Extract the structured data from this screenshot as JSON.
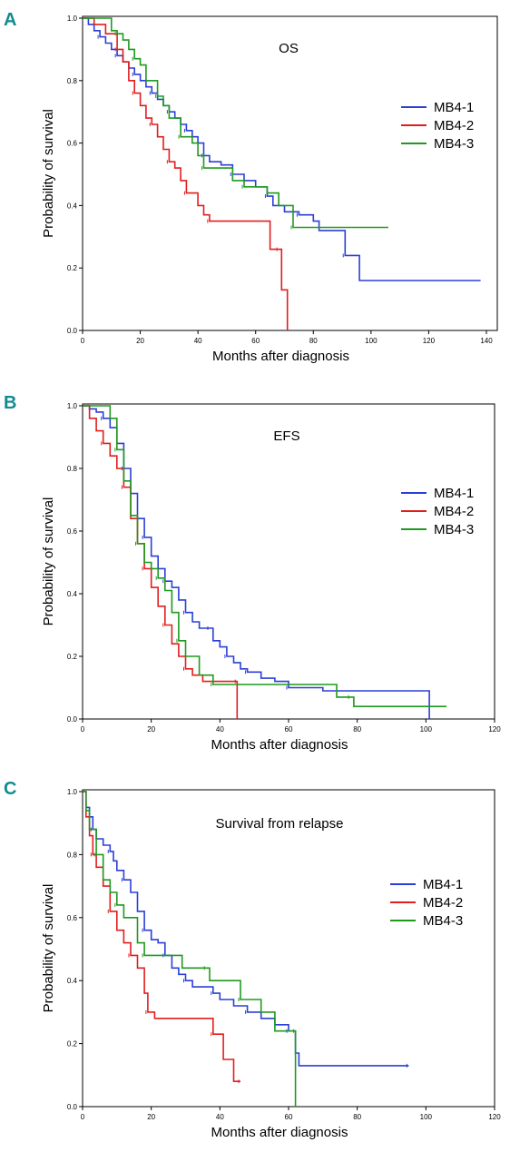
{
  "colors": {
    "series1": "#2b3fd6",
    "series2": "#e01e1e",
    "series3": "#1f9a1f",
    "axis": "#000000",
    "text": "#000000",
    "letter": "#138a8f"
  },
  "chart_data": [
    {
      "panel": "A",
      "type": "line",
      "subtype": "kaplan-meier step",
      "title": "OS",
      "xlabel": "Months after diagnosis",
      "ylabel": "Probability of survival",
      "xlim": [
        0,
        140
      ],
      "ylim": [
        0,
        1
      ],
      "xticks": [
        0,
        20,
        40,
        60,
        80,
        100,
        120,
        140
      ],
      "yticks": [
        "0.0",
        "0.2",
        "0.4",
        "0.6",
        "0.8",
        "1.0"
      ],
      "legend_position": "right",
      "series": [
        {
          "name": "MB4-1",
          "color": "series1",
          "points": [
            [
              0,
              1.0
            ],
            [
              2,
              0.98
            ],
            [
              4,
              0.96
            ],
            [
              6,
              0.94
            ],
            [
              8,
              0.92
            ],
            [
              10,
              0.9
            ],
            [
              12,
              0.88
            ],
            [
              14,
              0.86
            ],
            [
              16,
              0.84
            ],
            [
              18,
              0.82
            ],
            [
              20,
              0.8
            ],
            [
              22,
              0.78
            ],
            [
              24,
              0.76
            ],
            [
              26,
              0.74
            ],
            [
              28,
              0.72
            ],
            [
              30,
              0.7
            ],
            [
              32,
              0.68
            ],
            [
              34,
              0.66
            ],
            [
              36,
              0.64
            ],
            [
              38,
              0.62
            ],
            [
              40,
              0.6
            ],
            [
              42,
              0.56
            ],
            [
              44,
              0.54
            ],
            [
              48,
              0.53
            ],
            [
              52,
              0.5
            ],
            [
              56,
              0.48
            ],
            [
              60,
              0.46
            ],
            [
              64,
              0.43
            ],
            [
              66,
              0.4
            ],
            [
              70,
              0.38
            ],
            [
              75,
              0.37
            ],
            [
              80,
              0.35
            ],
            [
              82,
              0.32
            ],
            [
              91,
              0.24
            ],
            [
              96,
              0.16
            ],
            [
              138,
              0.16
            ]
          ]
        },
        {
          "name": "MB4-2",
          "color": "series2",
          "points": [
            [
              0,
              1.0
            ],
            [
              4,
              0.98
            ],
            [
              8,
              0.95
            ],
            [
              12,
              0.9
            ],
            [
              14,
              0.86
            ],
            [
              16,
              0.8
            ],
            [
              18,
              0.76
            ],
            [
              20,
              0.72
            ],
            [
              22,
              0.68
            ],
            [
              24,
              0.66
            ],
            [
              26,
              0.62
            ],
            [
              28,
              0.58
            ],
            [
              30,
              0.54
            ],
            [
              32,
              0.52
            ],
            [
              34,
              0.48
            ],
            [
              36,
              0.44
            ],
            [
              40,
              0.4
            ],
            [
              42,
              0.37
            ],
            [
              44,
              0.35
            ],
            [
              64,
              0.35
            ],
            [
              65,
              0.26
            ],
            [
              68,
              0.26
            ],
            [
              69,
              0.13
            ],
            [
              71,
              0.13
            ],
            [
              71,
              0.0
            ]
          ]
        },
        {
          "name": "MB4-3",
          "color": "series3",
          "points": [
            [
              0,
              1.0
            ],
            [
              8,
              1.0
            ],
            [
              10,
              0.96
            ],
            [
              12,
              0.95
            ],
            [
              14,
              0.93
            ],
            [
              16,
              0.9
            ],
            [
              18,
              0.87
            ],
            [
              20,
              0.85
            ],
            [
              22,
              0.8
            ],
            [
              26,
              0.75
            ],
            [
              28,
              0.72
            ],
            [
              30,
              0.68
            ],
            [
              34,
              0.62
            ],
            [
              38,
              0.6
            ],
            [
              40,
              0.56
            ],
            [
              42,
              0.52
            ],
            [
              50,
              0.52
            ],
            [
              52,
              0.48
            ],
            [
              56,
              0.46
            ],
            [
              64,
              0.44
            ],
            [
              68,
              0.4
            ],
            [
              73,
              0.33
            ],
            [
              106,
              0.33
            ]
          ]
        }
      ]
    },
    {
      "panel": "B",
      "type": "line",
      "subtype": "kaplan-meier step",
      "title": "EFS",
      "xlabel": "Months after diagnosis",
      "ylabel": "Probability of survival",
      "xlim": [
        0,
        120
      ],
      "ylim": [
        0,
        1
      ],
      "xticks": [
        0,
        20,
        40,
        60,
        80,
        100,
        120
      ],
      "yticks": [
        "0.0",
        "0.2",
        "0.4",
        "0.6",
        "0.8",
        "1.0"
      ],
      "legend_position": "right",
      "series": [
        {
          "name": "MB4-1",
          "color": "series1",
          "points": [
            [
              0,
              1.0
            ],
            [
              2,
              0.99
            ],
            [
              4,
              0.98
            ],
            [
              6,
              0.96
            ],
            [
              8,
              0.93
            ],
            [
              10,
              0.88
            ],
            [
              12,
              0.8
            ],
            [
              14,
              0.72
            ],
            [
              16,
              0.64
            ],
            [
              18,
              0.58
            ],
            [
              20,
              0.52
            ],
            [
              22,
              0.48
            ],
            [
              24,
              0.44
            ],
            [
              26,
              0.42
            ],
            [
              28,
              0.38
            ],
            [
              30,
              0.34
            ],
            [
              32,
              0.31
            ],
            [
              34,
              0.29
            ],
            [
              37,
              0.29
            ],
            [
              38,
              0.25
            ],
            [
              40,
              0.23
            ],
            [
              42,
              0.2
            ],
            [
              44,
              0.18
            ],
            [
              46,
              0.16
            ],
            [
              48,
              0.15
            ],
            [
              52,
              0.13
            ],
            [
              56,
              0.12
            ],
            [
              60,
              0.1
            ],
            [
              70,
              0.09
            ],
            [
              100,
              0.09
            ],
            [
              101,
              0.0
            ]
          ]
        },
        {
          "name": "MB4-2",
          "color": "series2",
          "points": [
            [
              0,
              1.0
            ],
            [
              2,
              0.96
            ],
            [
              4,
              0.92
            ],
            [
              6,
              0.88
            ],
            [
              8,
              0.84
            ],
            [
              10,
              0.8
            ],
            [
              12,
              0.74
            ],
            [
              14,
              0.64
            ],
            [
              16,
              0.56
            ],
            [
              18,
              0.48
            ],
            [
              20,
              0.42
            ],
            [
              22,
              0.36
            ],
            [
              24,
              0.3
            ],
            [
              26,
              0.24
            ],
            [
              28,
              0.2
            ],
            [
              30,
              0.16
            ],
            [
              32,
              0.14
            ],
            [
              35,
              0.12
            ],
            [
              45,
              0.12
            ],
            [
              45,
              0.0
            ]
          ]
        },
        {
          "name": "MB4-3",
          "color": "series3",
          "points": [
            [
              0,
              1.0
            ],
            [
              6,
              1.0
            ],
            [
              8,
              0.96
            ],
            [
              10,
              0.86
            ],
            [
              12,
              0.76
            ],
            [
              14,
              0.65
            ],
            [
              16,
              0.56
            ],
            [
              18,
              0.5
            ],
            [
              20,
              0.48
            ],
            [
              22,
              0.45
            ],
            [
              24,
              0.41
            ],
            [
              26,
              0.34
            ],
            [
              28,
              0.25
            ],
            [
              30,
              0.2
            ],
            [
              34,
              0.14
            ],
            [
              38,
              0.11
            ],
            [
              74,
              0.11
            ],
            [
              74,
              0.07
            ],
            [
              78,
              0.07
            ],
            [
              79,
              0.04
            ],
            [
              106,
              0.04
            ]
          ]
        }
      ]
    },
    {
      "panel": "C",
      "type": "line",
      "subtype": "kaplan-meier step",
      "title": "Survival from relapse",
      "xlabel": "Months after diagnosis",
      "ylabel": "Probability of survival",
      "xlim": [
        0,
        120
      ],
      "ylim": [
        0,
        1
      ],
      "xticks": [
        0,
        20,
        40,
        60,
        80,
        100,
        120
      ],
      "yticks": [
        "0.0",
        "0.2",
        "0.4",
        "0.6",
        "0.8",
        "1.0"
      ],
      "legend_position": "right",
      "series": [
        {
          "name": "MB4-1",
          "color": "series1",
          "points": [
            [
              0,
              1.0
            ],
            [
              1,
              0.95
            ],
            [
              2,
              0.92
            ],
            [
              3,
              0.88
            ],
            [
              4,
              0.85
            ],
            [
              6,
              0.83
            ],
            [
              8,
              0.81
            ],
            [
              9,
              0.78
            ],
            [
              10,
              0.75
            ],
            [
              12,
              0.72
            ],
            [
              14,
              0.68
            ],
            [
              16,
              0.62
            ],
            [
              18,
              0.56
            ],
            [
              20,
              0.53
            ],
            [
              22,
              0.52
            ],
            [
              24,
              0.48
            ],
            [
              26,
              0.44
            ],
            [
              28,
              0.42
            ],
            [
              30,
              0.4
            ],
            [
              32,
              0.38
            ],
            [
              36,
              0.38
            ],
            [
              38,
              0.36
            ],
            [
              40,
              0.34
            ],
            [
              44,
              0.32
            ],
            [
              48,
              0.3
            ],
            [
              52,
              0.28
            ],
            [
              56,
              0.26
            ],
            [
              60,
              0.24
            ],
            [
              62,
              0.17
            ],
            [
              63,
              0.13
            ],
            [
              95,
              0.13
            ]
          ]
        },
        {
          "name": "MB4-2",
          "color": "series2",
          "points": [
            [
              0,
              1.0
            ],
            [
              1,
              0.92
            ],
            [
              2,
              0.86
            ],
            [
              3,
              0.8
            ],
            [
              4,
              0.76
            ],
            [
              6,
              0.7
            ],
            [
              8,
              0.62
            ],
            [
              10,
              0.56
            ],
            [
              12,
              0.52
            ],
            [
              14,
              0.48
            ],
            [
              16,
              0.44
            ],
            [
              18,
              0.36
            ],
            [
              19,
              0.3
            ],
            [
              21,
              0.28
            ],
            [
              37,
              0.28
            ],
            [
              38,
              0.23
            ],
            [
              41,
              0.15
            ],
            [
              44,
              0.08
            ],
            [
              46,
              0.08
            ]
          ]
        },
        {
          "name": "MB4-3",
          "color": "series3",
          "points": [
            [
              0,
              1.0
            ],
            [
              1,
              0.94
            ],
            [
              2,
              0.88
            ],
            [
              4,
              0.8
            ],
            [
              6,
              0.72
            ],
            [
              8,
              0.68
            ],
            [
              10,
              0.64
            ],
            [
              12,
              0.6
            ],
            [
              16,
              0.52
            ],
            [
              18,
              0.48
            ],
            [
              28,
              0.48
            ],
            [
              29,
              0.44
            ],
            [
              36,
              0.44
            ],
            [
              37,
              0.4
            ],
            [
              44,
              0.4
            ],
            [
              46,
              0.34
            ],
            [
              52,
              0.3
            ],
            [
              56,
              0.24
            ],
            [
              62,
              0.24
            ],
            [
              62,
              0.0
            ]
          ]
        }
      ]
    }
  ]
}
